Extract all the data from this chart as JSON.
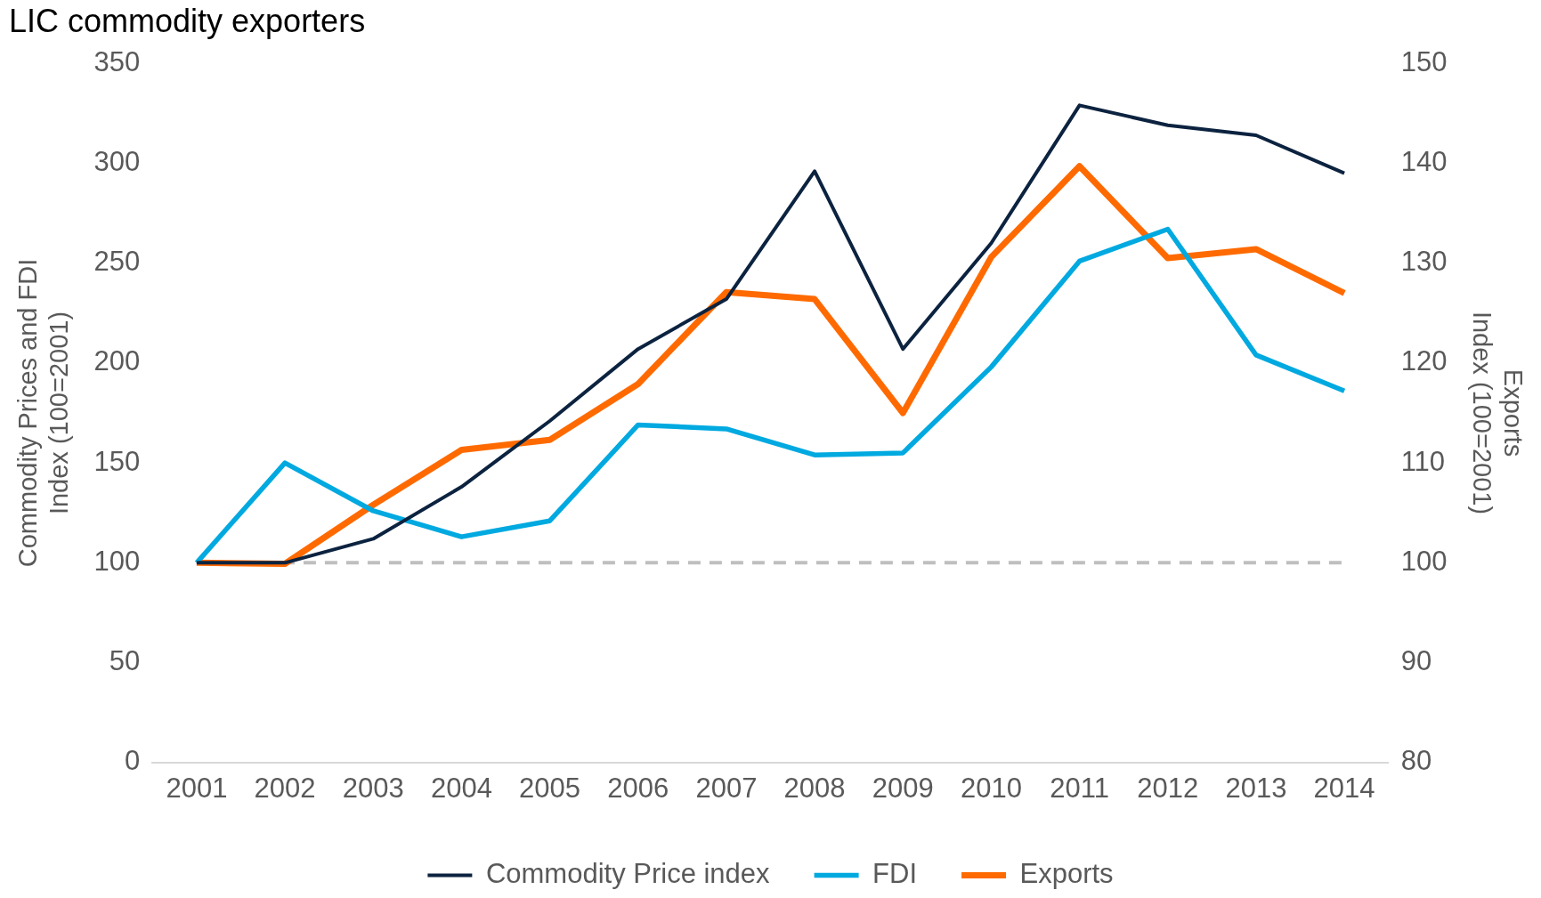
{
  "chart_data": {
    "type": "line",
    "title": "LIC commodity exporters",
    "ylabel": "Commodity Prices and FDI\nIndex (100=2001)",
    "y2label": "Exports\nIndex (100=2001)",
    "categories": [
      "2001",
      "2002",
      "2003",
      "2004",
      "2005",
      "2006",
      "2007",
      "2008",
      "2009",
      "2010",
      "2011",
      "2012",
      "2013",
      "2014"
    ],
    "series": [
      {
        "name": "Commodity Price index",
        "color": "#0c2340",
        "values": [
          100,
          100,
          112,
          138,
          171,
          207,
          232,
          296,
          207,
          260,
          329,
          319,
          314,
          295
        ]
      },
      {
        "name": "FDI",
        "color": "#00a9e0",
        "values": [
          100,
          150,
          126,
          113,
          121,
          169,
          167,
          154,
          155,
          198,
          251,
          267,
          204,
          186
        ]
      },
      {
        "name": "Exports",
        "color": "#ff6a00",
        "axis": "y2",
        "values": [
          100,
          99.9,
          105.8,
          111.3,
          112.3,
          117.9,
          127.1,
          126.4,
          115,
          130.6,
          139.7,
          130.5,
          131.4,
          127
        ]
      }
    ],
    "ylim": [
      0,
      350
    ],
    "yticks": [
      0,
      50,
      100,
      150,
      200,
      250,
      300,
      350
    ],
    "y2lim": [
      80,
      150
    ],
    "y2ticks": [
      80,
      90,
      100,
      110,
      120,
      130,
      140,
      150
    ],
    "ref_lines": [
      {
        "axis": "y",
        "value": 100,
        "color": "#bfbfbf",
        "line_style": "dashed"
      }
    ],
    "grid": false,
    "legend": "bottom",
    "marker": "none",
    "line_style": "solid"
  }
}
